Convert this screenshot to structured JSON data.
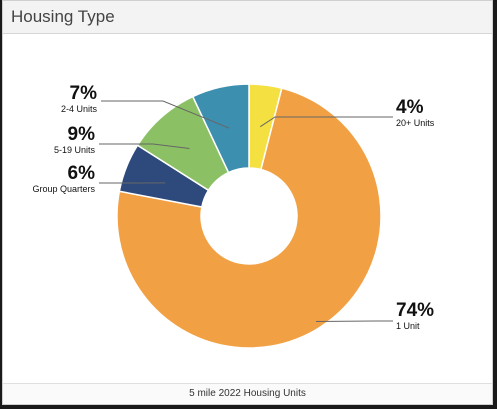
{
  "header": {
    "title": "Housing Type"
  },
  "footer": {
    "caption": "5 mile 2022 Housing Units"
  },
  "chart_data": {
    "type": "pie",
    "donut": true,
    "title": "Housing Type",
    "caption": "5 mile 2022 Housing Units",
    "slices": [
      {
        "label": "20+ Units",
        "value": 4,
        "display": "4%",
        "color": "#f5e042"
      },
      {
        "label": "1 Unit",
        "value": 74,
        "display": "74%",
        "color": "#f2a044"
      },
      {
        "label": "Group Quarters",
        "value": 6,
        "display": "6%",
        "color": "#2e4a7d"
      },
      {
        "label": "5-19 Units",
        "value": 9,
        "display": "9%",
        "color": "#8cc065"
      },
      {
        "label": "2-4 Units",
        "value": 7,
        "display": "7%",
        "color": "#3d8fb0"
      }
    ]
  }
}
